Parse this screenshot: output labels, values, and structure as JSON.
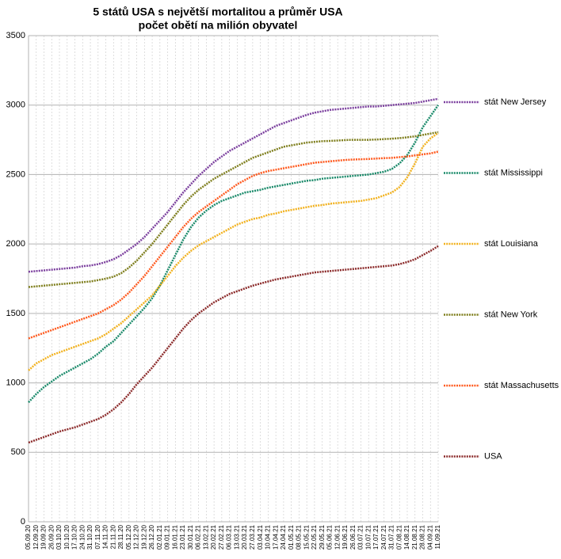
{
  "chart_data": {
    "type": "line",
    "title": "5 států USA s největší mortalitou a průměr USA",
    "subtitle": "počet obětí na milión obyvatel",
    "categories": [
      "05.09.20",
      "12.09.20",
      "19.09.20",
      "26.09.20",
      "03.10.20",
      "10.10.20",
      "17.10.20",
      "24.10.20",
      "31.10.20",
      "07.11.20",
      "14.11.20",
      "21.11.20",
      "28.11.20",
      "05.12.20",
      "12.12.20",
      "19.12.20",
      "26.12.20",
      "02.01.21",
      "09.01.21",
      "16.01.21",
      "23.01.21",
      "30.01.21",
      "06.02.21",
      "13.02.21",
      "20.02.21",
      "27.02.21",
      "06.03.21",
      "13.03.21",
      "20.03.21",
      "27.03.21",
      "03.04.21",
      "10.04.21",
      "17.04.21",
      "24.04.21",
      "01.05.21",
      "08.05.21",
      "15.05.21",
      "22.05.21",
      "29.05.21",
      "05.06.21",
      "12.06.21",
      "19.06.21",
      "26.06.21",
      "03.07.21",
      "10.07.21",
      "17.07.21",
      "24.07.21",
      "31.07.21",
      "07.08.21",
      "14.08.21",
      "21.08.21",
      "28.08.21",
      "04.09.21",
      "11.09.21"
    ],
    "series": [
      {
        "name": "stát New Jersey",
        "color": "#7b3f9e",
        "values": [
          1800,
          1805,
          1810,
          1815,
          1820,
          1825,
          1830,
          1840,
          1845,
          1855,
          1870,
          1890,
          1920,
          1960,
          2000,
          2050,
          2110,
          2170,
          2230,
          2300,
          2370,
          2430,
          2490,
          2540,
          2590,
          2630,
          2670,
          2700,
          2730,
          2760,
          2790,
          2820,
          2850,
          2870,
          2890,
          2910,
          2930,
          2945,
          2955,
          2965,
          2970,
          2975,
          2980,
          2985,
          2990,
          2990,
          2995,
          3000,
          3005,
          3010,
          3015,
          3025,
          3035,
          3045
        ]
      },
      {
        "name": "stát Mississippi",
        "color": "#1a8a6a",
        "values": [
          860,
          920,
          970,
          1010,
          1050,
          1080,
          1110,
          1140,
          1170,
          1210,
          1260,
          1300,
          1360,
          1420,
          1480,
          1540,
          1610,
          1700,
          1810,
          1920,
          2030,
          2120,
          2190,
          2240,
          2280,
          2310,
          2330,
          2350,
          2370,
          2380,
          2390,
          2405,
          2415,
          2425,
          2435,
          2445,
          2455,
          2460,
          2470,
          2475,
          2480,
          2485,
          2490,
          2495,
          2500,
          2510,
          2520,
          2540,
          2580,
          2640,
          2730,
          2840,
          2920,
          3000
        ]
      },
      {
        "name": "stát Louisiana",
        "color": "#f2b21f",
        "values": [
          1090,
          1140,
          1170,
          1200,
          1220,
          1240,
          1260,
          1280,
          1300,
          1320,
          1350,
          1390,
          1430,
          1480,
          1530,
          1580,
          1630,
          1700,
          1770,
          1840,
          1900,
          1950,
          1990,
          2020,
          2050,
          2080,
          2110,
          2140,
          2160,
          2180,
          2190,
          2210,
          2220,
          2235,
          2245,
          2255,
          2265,
          2275,
          2280,
          2290,
          2295,
          2300,
          2305,
          2310,
          2320,
          2330,
          2350,
          2370,
          2410,
          2480,
          2580,
          2700,
          2760,
          2800
        ]
      },
      {
        "name": "stát New York",
        "color": "#7f7f1e",
        "values": [
          1690,
          1695,
          1700,
          1705,
          1710,
          1715,
          1720,
          1725,
          1730,
          1740,
          1750,
          1765,
          1790,
          1830,
          1880,
          1940,
          2000,
          2070,
          2140,
          2210,
          2280,
          2340,
          2390,
          2430,
          2470,
          2500,
          2530,
          2560,
          2590,
          2620,
          2640,
          2660,
          2680,
          2700,
          2710,
          2720,
          2730,
          2735,
          2740,
          2742,
          2745,
          2748,
          2750,
          2750,
          2750,
          2752,
          2755,
          2758,
          2762,
          2768,
          2775,
          2785,
          2795,
          2805
        ]
      },
      {
        "name": "stát Massachusetts",
        "color": "#ff5a1f",
        "values": [
          1320,
          1340,
          1360,
          1380,
          1400,
          1420,
          1440,
          1460,
          1480,
          1500,
          1530,
          1560,
          1600,
          1650,
          1710,
          1770,
          1840,
          1910,
          1980,
          2050,
          2120,
          2180,
          2230,
          2270,
          2310,
          2350,
          2390,
          2430,
          2460,
          2490,
          2510,
          2525,
          2535,
          2545,
          2555,
          2565,
          2575,
          2585,
          2590,
          2595,
          2600,
          2605,
          2608,
          2610,
          2612,
          2615,
          2618,
          2620,
          2625,
          2630,
          2638,
          2645,
          2652,
          2665
        ]
      },
      {
        "name": "USA",
        "color": "#8b2a2a",
        "values": [
          570,
          590,
          610,
          630,
          650,
          665,
          680,
          700,
          720,
          740,
          770,
          810,
          860,
          920,
          990,
          1050,
          1110,
          1180,
          1250,
          1320,
          1390,
          1450,
          1500,
          1540,
          1580,
          1610,
          1640,
          1660,
          1680,
          1700,
          1715,
          1730,
          1745,
          1755,
          1765,
          1775,
          1785,
          1795,
          1800,
          1805,
          1810,
          1815,
          1820,
          1825,
          1830,
          1835,
          1840,
          1845,
          1855,
          1870,
          1890,
          1920,
          1950,
          1985
        ]
      }
    ],
    "ylim": [
      0,
      3500
    ],
    "yticks": [
      0,
      500,
      1000,
      1500,
      2000,
      2500,
      3000,
      3500
    ],
    "grid": true,
    "legend": "right"
  }
}
